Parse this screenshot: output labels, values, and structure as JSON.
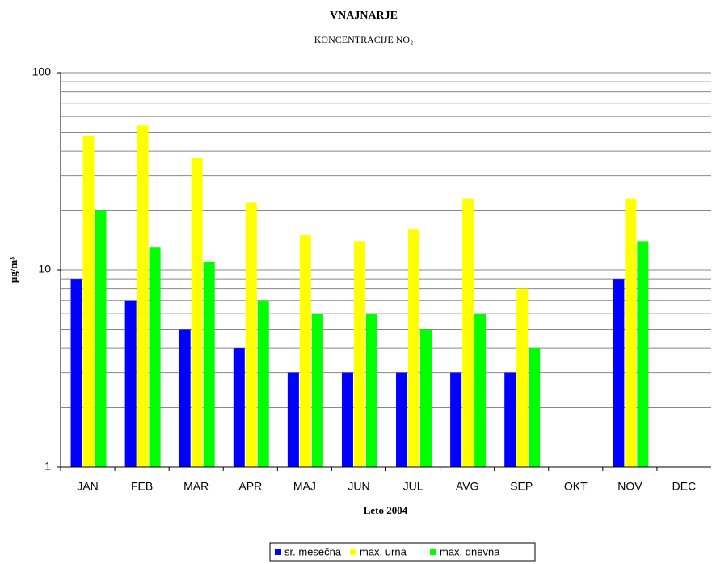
{
  "chart_data": {
    "type": "bar",
    "title": "VNAJNARJE",
    "subtitle": "KONCENTRACIJE NO₂",
    "y_label": "μg/m³",
    "x_label": "Leto 2004",
    "categories": [
      "JAN",
      "FEB",
      "MAR",
      "APR",
      "MAJ",
      "JUN",
      "JUL",
      "AVG",
      "SEP",
      "OKT",
      "NOV",
      "DEC"
    ],
    "series": [
      {
        "name": "sr. mesečna",
        "color": "#0000ff",
        "values": [
          9,
          7,
          5,
          4,
          3,
          3,
          3,
          3,
          3,
          null,
          9,
          null
        ]
      },
      {
        "name": "max. urna",
        "color": "#ffff00",
        "values": [
          48,
          54,
          37,
          22,
          15,
          14,
          16,
          23,
          8,
          null,
          23,
          null
        ]
      },
      {
        "name": "max. dnevna",
        "color": "#00ff00",
        "values": [
          20,
          13,
          11,
          7,
          6,
          6,
          5,
          6,
          4,
          null,
          14,
          null
        ]
      }
    ],
    "ylim": [
      1,
      100
    ],
    "yticks": [
      1,
      10,
      100
    ],
    "log_scale": true,
    "grid": true,
    "minor_grid": true,
    "legend": "bottom"
  }
}
